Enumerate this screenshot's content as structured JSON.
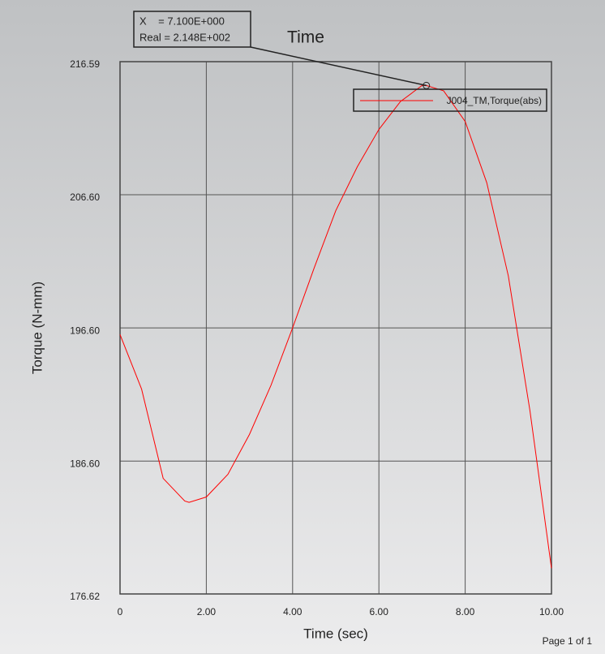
{
  "chart_data": {
    "type": "line",
    "title": "Time",
    "x_label": "Time (sec)",
    "y_label": "Torque (N-mm)",
    "x": [
      0,
      0.5,
      1.0,
      1.5,
      1.6,
      2.0,
      2.5,
      3.0,
      3.5,
      4.0,
      4.5,
      5.0,
      5.5,
      6.0,
      6.5,
      7.0,
      7.1,
      7.5,
      8.0,
      8.5,
      9.0,
      9.5,
      10.0
    ],
    "series": [
      {
        "name": "J004_TM,Torque(abs)",
        "color": "#ff0000",
        "values": [
          196.1,
          192.0,
          185.3,
          183.6,
          183.5,
          183.9,
          185.6,
          188.6,
          192.3,
          196.6,
          201.1,
          205.4,
          208.7,
          211.5,
          213.6,
          214.8,
          214.8,
          214.4,
          212.1,
          207.5,
          200.5,
          190.4,
          178.55
        ]
      }
    ],
    "xlim": [
      0,
      10
    ],
    "xticks": [
      0,
      {
        "value": 2,
        "label": "2.00"
      },
      {
        "value": 4,
        "label": "4.00"
      },
      {
        "value": 6,
        "label": "6.00"
      },
      {
        "value": 8,
        "label": "8.00"
      },
      {
        "value": 10,
        "label": "10.00"
      }
    ],
    "ylim": [
      176.62,
      216.59
    ],
    "yticks": [
      176.62,
      {
        "value": 186.6,
        "label": "186.60"
      },
      {
        "value": 196.6,
        "label": "196.60"
      },
      {
        "value": 206.6,
        "label": "206.60"
      },
      216.59
    ],
    "grid": true,
    "legend": "top-right",
    "annotation": {
      "x": 7.1,
      "y": 214.8,
      "lines": [
        "X    = 7.100E+000",
        "Real = 2.148E+002"
      ]
    },
    "footer": "Page 1 of 1"
  }
}
